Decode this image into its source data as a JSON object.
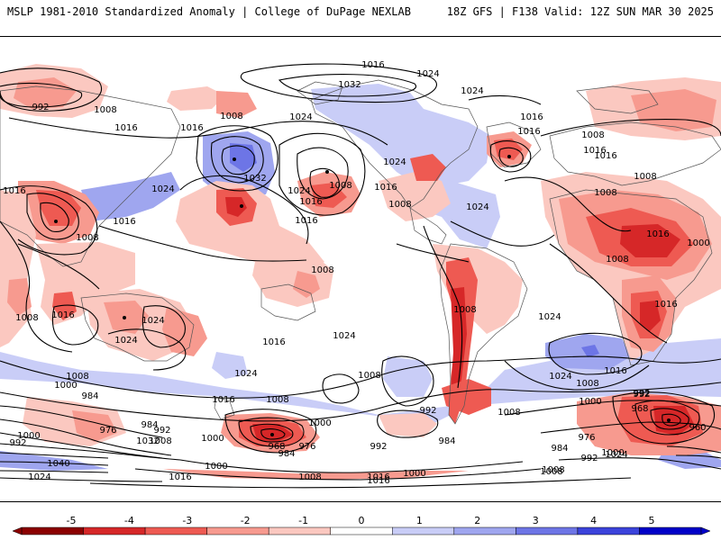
{
  "header": {
    "left": "MSLP 1981-2010 Standardized Anomaly | College of DuPage NEXLAB",
    "right": "18Z GFS | F138 Valid: 12Z SUN MAR 30 2025"
  },
  "colorbar": {
    "ticks": [
      "-5",
      "-4",
      "-3",
      "-2",
      "-1",
      "0",
      "1",
      "2",
      "3",
      "4",
      "5"
    ],
    "colors": [
      "#8b0000",
      "#d62728",
      "#ee5a52",
      "#f79a8f",
      "#fbc8c0",
      "#ffffff",
      "#c9cdf7",
      "#9fa6ef",
      "#6d75e6",
      "#3b43db",
      "#0000c8"
    ]
  },
  "contour_labels": [
    {
      "id": "c1",
      "text": "1016"
    },
    {
      "id": "c2",
      "text": "1024"
    },
    {
      "id": "c3",
      "text": "1032"
    },
    {
      "id": "c4",
      "text": "1024"
    },
    {
      "id": "c5",
      "text": "992"
    },
    {
      "id": "c6",
      "text": "1008"
    },
    {
      "id": "c7",
      "text": "1008"
    },
    {
      "id": "c8",
      "text": "1016"
    },
    {
      "id": "c9",
      "text": "1016"
    },
    {
      "id": "c10",
      "text": "1024"
    },
    {
      "id": "c11",
      "text": "1032"
    },
    {
      "id": "c12",
      "text": "1024"
    },
    {
      "id": "c13",
      "text": "1024"
    },
    {
      "id": "c14",
      "text": "1016"
    },
    {
      "id": "c15",
      "text": "1008"
    },
    {
      "id": "c16",
      "text": "1024"
    },
    {
      "id": "c17",
      "text": "1016"
    },
    {
      "id": "c18",
      "text": "1016"
    },
    {
      "id": "c19",
      "text": "1008"
    },
    {
      "id": "c20",
      "text": "1016"
    },
    {
      "id": "c21",
      "text": "1008"
    },
    {
      "id": "c22",
      "text": "1024"
    },
    {
      "id": "c23",
      "text": "1016"
    },
    {
      "id": "c24",
      "text": "1008"
    },
    {
      "id": "c25",
      "text": "1016"
    },
    {
      "id": "c26",
      "text": "1016"
    },
    {
      "id": "c27",
      "text": "1016"
    },
    {
      "id": "c28",
      "text": "1008"
    },
    {
      "id": "c29",
      "text": "1024"
    },
    {
      "id": "c30",
      "text": "1016"
    },
    {
      "id": "c31",
      "text": "1024"
    },
    {
      "id": "c32",
      "text": "1016"
    },
    {
      "id": "c33",
      "text": "1024"
    },
    {
      "id": "c34",
      "text": "1016"
    },
    {
      "id": "c35",
      "text": "1008"
    },
    {
      "id": "c36",
      "text": "1008"
    },
    {
      "id": "c37",
      "text": "1008"
    },
    {
      "id": "c38",
      "text": "1000"
    },
    {
      "id": "c39",
      "text": "1016"
    },
    {
      "id": "c40",
      "text": "1024"
    },
    {
      "id": "c41",
      "text": "1016"
    },
    {
      "id": "c42",
      "text": "1024"
    },
    {
      "id": "c43",
      "text": "1016"
    },
    {
      "id": "c44",
      "text": "1008"
    },
    {
      "id": "c45",
      "text": "1008"
    },
    {
      "id": "c46",
      "text": "1008"
    },
    {
      "id": "c47",
      "text": "1008"
    },
    {
      "id": "c48",
      "text": "1024"
    },
    {
      "id": "c49",
      "text": "1016"
    },
    {
      "id": "c50",
      "text": "1008"
    },
    {
      "id": "c51",
      "text": "992"
    },
    {
      "id": "c52",
      "text": "1008"
    },
    {
      "id": "c53",
      "text": "1000"
    },
    {
      "id": "c54",
      "text": "984"
    },
    {
      "id": "c55",
      "text": "992"
    },
    {
      "id": "c56",
      "text": "984"
    },
    {
      "id": "c57",
      "text": "976"
    },
    {
      "id": "c58",
      "text": "1000"
    },
    {
      "id": "c59",
      "text": "992"
    },
    {
      "id": "c60",
      "text": "1008"
    },
    {
      "id": "c61",
      "text": "1032"
    },
    {
      "id": "c62",
      "text": "992"
    },
    {
      "id": "c63",
      "text": "1000"
    },
    {
      "id": "c64",
      "text": "1040"
    },
    {
      "id": "c65",
      "text": "1024"
    },
    {
      "id": "c66",
      "text": "1016"
    },
    {
      "id": "c67",
      "text": "1000"
    },
    {
      "id": "c68",
      "text": "968"
    },
    {
      "id": "c69",
      "text": "976"
    },
    {
      "id": "c70",
      "text": "984"
    },
    {
      "id": "c71",
      "text": "992"
    },
    {
      "id": "c72",
      "text": "984"
    },
    {
      "id": "c73",
      "text": "1000"
    },
    {
      "id": "c74",
      "text": "1008"
    },
    {
      "id": "c75",
      "text": "1016"
    },
    {
      "id": "c76",
      "text": "1000"
    },
    {
      "id": "c77",
      "text": "1008"
    },
    {
      "id": "c78",
      "text": "1000"
    },
    {
      "id": "c79",
      "text": "1024"
    },
    {
      "id": "c80",
      "text": "1008"
    },
    {
      "id": "c81",
      "text": "992"
    },
    {
      "id": "c82",
      "text": "968"
    },
    {
      "id": "c83",
      "text": "960"
    },
    {
      "id": "c84",
      "text": "976"
    },
    {
      "id": "c85",
      "text": "984"
    },
    {
      "id": "c86",
      "text": "992"
    },
    {
      "id": "c87",
      "text": "1000"
    },
    {
      "id": "c88",
      "text": "1008"
    },
    {
      "id": "c89",
      "text": "1016"
    }
  ]
}
